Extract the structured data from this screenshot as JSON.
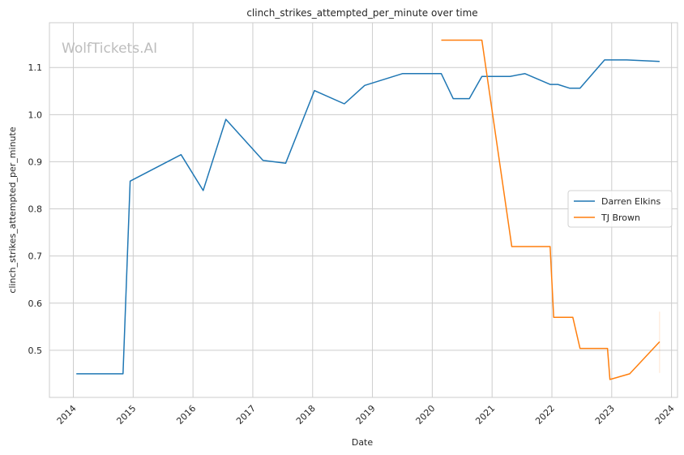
{
  "chart_data": {
    "type": "line",
    "title": "clinch_strikes_attempted_per_minute over time",
    "xlabel": "Date",
    "ylabel": "clinch_strikes_attempted_per_minute",
    "watermark": "WolfTickets.AI",
    "xlim": [
      2013.6,
      2024.1
    ],
    "ylim": [
      0.4,
      1.195
    ],
    "x_ticks": [
      2014,
      2015,
      2016,
      2017,
      2018,
      2019,
      2020,
      2021,
      2022,
      2023,
      2024
    ],
    "y_ticks": [
      0.5,
      0.6,
      0.7,
      0.8,
      0.9,
      1.0,
      1.1
    ],
    "grid": true,
    "legend_position": "center-right",
    "series": [
      {
        "name": "Darren Elkins",
        "color": "#1f77b4",
        "points": [
          [
            2014.05,
            0.45
          ],
          [
            2014.83,
            0.45
          ],
          [
            2014.95,
            0.859
          ],
          [
            2015.8,
            0.915
          ],
          [
            2016.17,
            0.839
          ],
          [
            2016.55,
            0.99
          ],
          [
            2017.17,
            0.903
          ],
          [
            2017.55,
            0.897
          ],
          [
            2018.03,
            1.051
          ],
          [
            2018.53,
            1.023
          ],
          [
            2018.87,
            1.062
          ],
          [
            2019.5,
            1.087
          ],
          [
            2020.15,
            1.087
          ],
          [
            2020.35,
            1.034
          ],
          [
            2020.62,
            1.034
          ],
          [
            2020.83,
            1.081
          ],
          [
            2021.3,
            1.081
          ],
          [
            2021.55,
            1.087
          ],
          [
            2021.97,
            1.064
          ],
          [
            2022.1,
            1.064
          ],
          [
            2022.3,
            1.056
          ],
          [
            2022.47,
            1.056
          ],
          [
            2022.88,
            1.116
          ],
          [
            2023.25,
            1.116
          ],
          [
            2023.8,
            1.113
          ]
        ]
      },
      {
        "name": "TJ Brown",
        "color": "#ff7f0e",
        "points": [
          [
            2020.15,
            1.158
          ],
          [
            2020.83,
            1.158
          ],
          [
            2021.33,
            0.72
          ],
          [
            2021.97,
            0.72
          ],
          [
            2022.03,
            0.57
          ],
          [
            2022.35,
            0.57
          ],
          [
            2022.47,
            0.504
          ],
          [
            2022.93,
            0.504
          ],
          [
            2022.97,
            0.438
          ],
          [
            2023.3,
            0.45
          ],
          [
            2023.8,
            0.518
          ]
        ],
        "band": {
          "x": 2023.8,
          "low": 0.452,
          "high": 0.582
        }
      }
    ]
  }
}
